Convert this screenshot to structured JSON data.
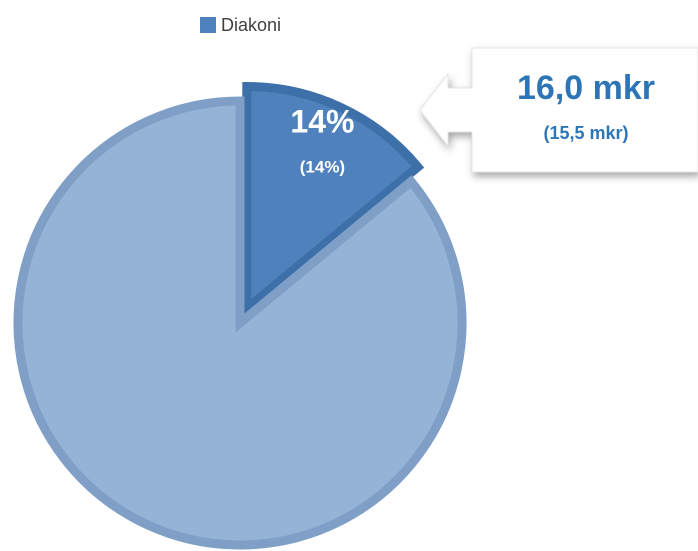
{
  "chart_data": {
    "type": "pie",
    "categories": [
      "Diakoni",
      null
    ],
    "values": [
      14,
      86
    ],
    "value_labels": [
      "14%",
      null
    ],
    "value_sublabels": [
      "(14%)",
      null
    ],
    "colors": [
      "#4f81bd",
      "#95b3d7"
    ],
    "explode": [
      true,
      false
    ],
    "legend": "top",
    "callout": {
      "text": "16,0 mkr",
      "subtext": "(15,5 mkr)"
    }
  }
}
